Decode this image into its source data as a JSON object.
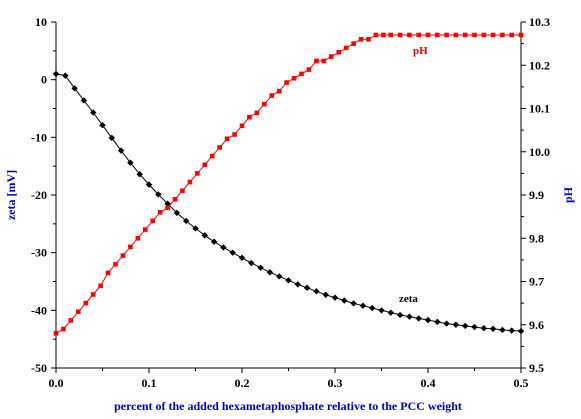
{
  "chart_data": {
    "type": "line",
    "xlabel": "percent of the added hexametaphosphate relative to the PCC weight",
    "ylabel_left": "zeta [mV]",
    "ylabel_right": "pH",
    "xlim": [
      0.0,
      0.5
    ],
    "ylim_left": [
      -50,
      10
    ],
    "ylim_right": [
      9.5,
      10.3
    ],
    "x_ticks": [
      "0.0",
      "0.1",
      "0.2",
      "0.3",
      "0.4",
      "0.5"
    ],
    "y_left_ticks": [
      "10",
      "0",
      "-10",
      "-20",
      "-30",
      "-40",
      "-50"
    ],
    "y_right_ticks": [
      "10.3",
      "10.2",
      "10.1",
      "10.0",
      "9.9",
      "9.8",
      "9.7",
      "9.6",
      "9.5"
    ],
    "grid": false,
    "series": [
      {
        "name": "zeta",
        "axis": "left",
        "color": "#000000",
        "marker": "diamond",
        "x": [
          0.0,
          0.01,
          0.02,
          0.03,
          0.04,
          0.05,
          0.06,
          0.07,
          0.08,
          0.09,
          0.1,
          0.11,
          0.12,
          0.13,
          0.14,
          0.15,
          0.16,
          0.17,
          0.18,
          0.19,
          0.2,
          0.21,
          0.22,
          0.23,
          0.24,
          0.25,
          0.26,
          0.27,
          0.28,
          0.29,
          0.3,
          0.31,
          0.32,
          0.33,
          0.34,
          0.35,
          0.36,
          0.37,
          0.38,
          0.39,
          0.4,
          0.41,
          0.42,
          0.43,
          0.44,
          0.45,
          0.46,
          0.47,
          0.48,
          0.49,
          0.5
        ],
        "y": [
          1.0,
          0.7,
          -1.5,
          -3.6,
          -5.7,
          -7.9,
          -10.1,
          -12.3,
          -14.4,
          -16.4,
          -18.2,
          -19.9,
          -21.5,
          -23.1,
          -24.5,
          -25.8,
          -27.0,
          -28.1,
          -29.1,
          -30.0,
          -30.9,
          -31.8,
          -32.6,
          -33.4,
          -34.1,
          -34.8,
          -35.5,
          -36.1,
          -36.7,
          -37.3,
          -37.8,
          -38.3,
          -38.8,
          -39.2,
          -39.6,
          -40.0,
          -40.4,
          -40.8,
          -41.1,
          -41.4,
          -41.7,
          -42.0,
          -42.3,
          -42.5,
          -42.7,
          -42.9,
          -43.1,
          -43.2,
          -43.4,
          -43.5,
          -43.6
        ]
      },
      {
        "name": "pH",
        "axis": "right",
        "color": "#ff0000",
        "marker": "square",
        "x": [
          0.0,
          0.008,
          0.016,
          0.024,
          0.032,
          0.04,
          0.048,
          0.056,
          0.064,
          0.072,
          0.08,
          0.088,
          0.096,
          0.104,
          0.112,
          0.12,
          0.128,
          0.136,
          0.144,
          0.152,
          0.16,
          0.168,
          0.176,
          0.184,
          0.192,
          0.2,
          0.208,
          0.216,
          0.224,
          0.232,
          0.24,
          0.248,
          0.256,
          0.264,
          0.272,
          0.28,
          0.288,
          0.296,
          0.304,
          0.312,
          0.32,
          0.328,
          0.336,
          0.344,
          0.352,
          0.36,
          0.37,
          0.38,
          0.39,
          0.4,
          0.41,
          0.42,
          0.43,
          0.44,
          0.45,
          0.46,
          0.47,
          0.48,
          0.49,
          0.5
        ],
        "y": [
          9.58,
          9.59,
          9.61,
          9.63,
          9.65,
          9.67,
          9.69,
          9.72,
          9.74,
          9.76,
          9.78,
          9.8,
          9.82,
          9.84,
          9.86,
          9.87,
          9.89,
          9.91,
          9.93,
          9.95,
          9.97,
          9.99,
          10.01,
          10.03,
          10.04,
          10.06,
          10.08,
          10.09,
          10.11,
          10.13,
          10.14,
          10.16,
          10.17,
          10.18,
          10.19,
          10.21,
          10.21,
          10.22,
          10.23,
          10.24,
          10.25,
          10.26,
          10.26,
          10.27,
          10.27,
          10.27,
          10.27,
          10.27,
          10.27,
          10.27,
          10.27,
          10.27,
          10.27,
          10.27,
          10.27,
          10.27,
          10.27,
          10.27,
          10.27,
          10.27
        ]
      }
    ]
  }
}
